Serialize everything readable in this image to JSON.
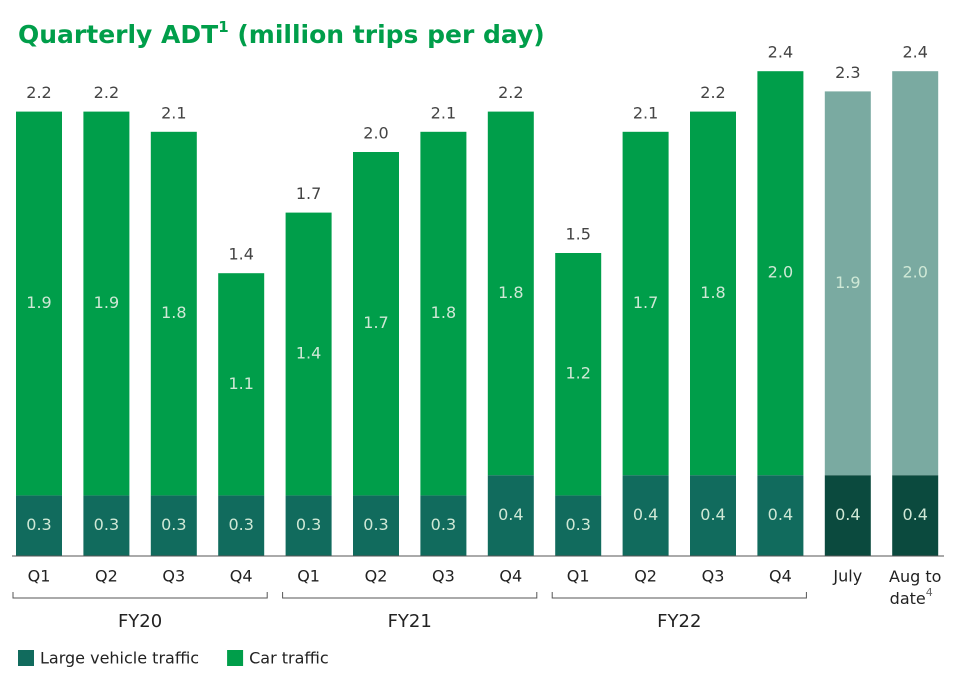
{
  "chart_data": {
    "type": "stacked-bar",
    "title": {
      "text": "Quarterly ADT",
      "sup": "1",
      "rest": " (million trips per day)"
    },
    "categories": [
      "Q1",
      "Q2",
      "Q3",
      "Q4",
      "Q1",
      "Q2",
      "Q3",
      "Q4",
      "Q1",
      "Q2",
      "Q3",
      "Q4",
      "July",
      {
        "label": "Aug to date",
        "sup": "4"
      }
    ],
    "groups": [
      {
        "label": "FY20",
        "start": 0,
        "end": 3
      },
      {
        "label": "FY21",
        "start": 4,
        "end": 7
      },
      {
        "label": "FY22",
        "start": 8,
        "end": 11
      }
    ],
    "series": [
      {
        "name": "Large vehicle traffic",
        "color": "#116b5d",
        "colors": [
          "#116b5d",
          "#116b5d",
          "#116b5d",
          "#116b5d",
          "#116b5d",
          "#116b5d",
          "#116b5d",
          "#116b5d",
          "#116b5d",
          "#116b5d",
          "#116b5d",
          "#116b5d",
          "#0b4a3e",
          "#0b4a3e"
        ],
        "values": [
          0.3,
          0.3,
          0.3,
          0.3,
          0.3,
          0.3,
          0.3,
          0.4,
          0.3,
          0.4,
          0.4,
          0.4,
          0.4,
          0.4
        ],
        "value_labels": [
          "0.3",
          "0.3",
          "0.3",
          "0.3",
          "0.3",
          "0.3",
          "0.3",
          "0.4",
          "0.3",
          "0.4",
          "0.4",
          "0.4",
          "0.4",
          "0.4"
        ]
      },
      {
        "name": "Car traffic",
        "color": "#009e4a",
        "colors": [
          "#009e4a",
          "#009e4a",
          "#009e4a",
          "#009e4a",
          "#009e4a",
          "#009e4a",
          "#009e4a",
          "#009e4a",
          "#009e4a",
          "#009e4a",
          "#009e4a",
          "#009e4a",
          "#7aaaa1",
          "#7aaaa1"
        ],
        "values": [
          1.9,
          1.9,
          1.8,
          1.1,
          1.4,
          1.7,
          1.8,
          1.8,
          1.2,
          1.7,
          1.8,
          2.0,
          1.9,
          2.0
        ],
        "value_labels": [
          "1.9",
          "1.9",
          "1.8",
          "1.1",
          "1.4",
          "1.7",
          "1.8",
          "1.8",
          "1.2",
          "1.7",
          "1.8",
          "2.0",
          "1.9",
          "2.0"
        ]
      }
    ],
    "totals": {
      "values": [
        2.2,
        2.2,
        2.1,
        1.4,
        1.7,
        2.0,
        2.1,
        2.2,
        1.5,
        2.1,
        2.2,
        2.4,
        2.3,
        2.4
      ],
      "value_labels": [
        "2.2",
        "2.2",
        "2.1",
        "1.4",
        "1.7",
        "2.0",
        "2.1",
        "2.2",
        "1.5",
        "2.1",
        "2.2",
        "2.4",
        "2.3",
        "2.4"
      ]
    }
  }
}
